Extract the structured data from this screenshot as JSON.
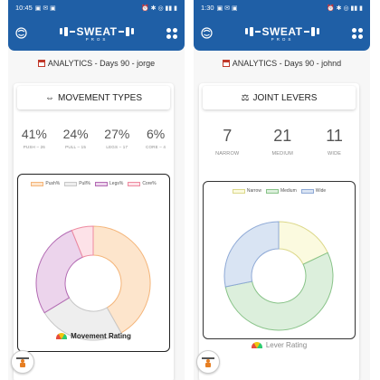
{
  "screens": [
    {
      "status": {
        "time": "10:45",
        "icons_left": "▣ ✉ ▣",
        "icons_right": "⏰ ✱ ◎ ▮▮ ▮"
      },
      "app": {
        "logo_main": "SWEAT",
        "logo_sub": "PROS"
      },
      "title": "ANALYTICS - Days 90 - jorge",
      "card": {
        "header_icon": "⇔",
        "header": "MOVEMENT TYPES",
        "stats": [
          {
            "value": "41%",
            "label": "PUSH – 26"
          },
          {
            "value": "24%",
            "label": "PULL – 15"
          },
          {
            "value": "27%",
            "label": "LEGS – 17"
          },
          {
            "value": "6%",
            "label": "CORE – 4"
          }
        ],
        "rating": "Movement Rating"
      },
      "chart_data": {
        "type": "pie",
        "style": "donut",
        "categories": [
          "Push%",
          "Pull%",
          "Legs%",
          "Core%"
        ],
        "values": [
          41,
          24,
          27,
          6
        ],
        "colors": [
          {
            "fill": "#fde5cc",
            "stroke": "#f4b57a"
          },
          {
            "fill": "#eeeeee",
            "stroke": "#c7c7c7"
          },
          {
            "fill": "#ecd4ec",
            "stroke": "#b36ab3"
          },
          {
            "fill": "#fde2e8",
            "stroke": "#ee8aa0"
          }
        ],
        "legend_placement": "top"
      }
    },
    {
      "status": {
        "time": "1:30",
        "icons_left": "▣ ✉ ▣",
        "icons_right": "⏰ ✱ ◎ ▮▮ ▮"
      },
      "app": {
        "logo_main": "SWEAT",
        "logo_sub": "PROS"
      },
      "title": "ANALYTICS - Days 90 - johnd",
      "card": {
        "header_icon": "⚖",
        "header": "JOINT LEVERS",
        "stats": [
          {
            "value": "7",
            "label": "NARROW"
          },
          {
            "value": "21",
            "label": "MEDIUM"
          },
          {
            "value": "11",
            "label": "WIDE"
          }
        ],
        "rating": "Lever Rating"
      },
      "chart_data": {
        "type": "pie",
        "style": "donut",
        "categories": [
          "Narrow",
          "Medium",
          "Wide"
        ],
        "values": [
          7,
          21,
          11
        ],
        "colors": [
          {
            "fill": "#fbfadf",
            "stroke": "#dcd88a"
          },
          {
            "fill": "#dcefdc",
            "stroke": "#88c388"
          },
          {
            "fill": "#d9e4f3",
            "stroke": "#8ea9d6"
          }
        ],
        "legend_placement": "top"
      }
    }
  ]
}
